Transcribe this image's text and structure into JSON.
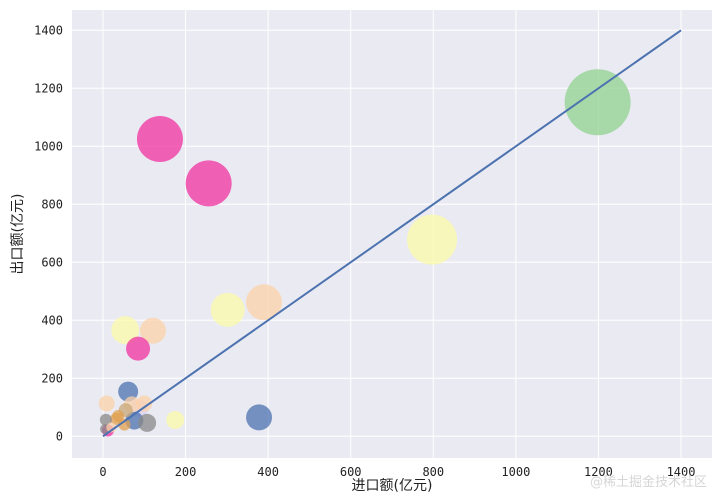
{
  "chart_data": {
    "type": "scatter",
    "title": "",
    "xlabel": "进口额(亿元)",
    "ylabel": "出口额(亿元)",
    "xlim": [
      -75,
      1475
    ],
    "ylim": [
      -75,
      1470
    ],
    "xticks": [
      0,
      200,
      400,
      600,
      800,
      1000,
      1200,
      1400
    ],
    "yticks": [
      0,
      200,
      400,
      600,
      800,
      1000,
      1200,
      1400
    ],
    "grid": true,
    "background": "#eaeaf2",
    "grid_color": "#ffffff",
    "reference_line": {
      "x": [
        0,
        1400
      ],
      "y": [
        0,
        1400
      ],
      "color": "#4c72b0"
    },
    "points": [
      {
        "x": 1198,
        "y": 1152,
        "r": 33,
        "color": "#8fd28f"
      },
      {
        "x": 138,
        "y": 1025,
        "r": 23,
        "color": "#f032a0"
      },
      {
        "x": 256,
        "y": 872,
        "r": 23,
        "color": "#f032a0"
      },
      {
        "x": 797,
        "y": 678,
        "r": 25,
        "color": "#fbfba8"
      },
      {
        "x": 390,
        "y": 462,
        "r": 18,
        "color": "#fcd2a8"
      },
      {
        "x": 302,
        "y": 436,
        "r": 17,
        "color": "#fbfba8"
      },
      {
        "x": 54,
        "y": 366,
        "r": 14,
        "color": "#fbfba8"
      },
      {
        "x": 121,
        "y": 364,
        "r": 13,
        "color": "#fcd2a8"
      },
      {
        "x": 85,
        "y": 302,
        "r": 12,
        "color": "#f032a0"
      },
      {
        "x": 61,
        "y": 154,
        "r": 10,
        "color": "#4c72b0"
      },
      {
        "x": 9,
        "y": 113,
        "r": 8,
        "color": "#fcd2a8"
      },
      {
        "x": 100,
        "y": 113,
        "r": 8,
        "color": "#fcd2a8"
      },
      {
        "x": 70,
        "y": 110,
        "r": 8,
        "color": "#fcd2a8"
      },
      {
        "x": 88,
        "y": 96,
        "r": 9,
        "color": "#dcd2f0"
      },
      {
        "x": 55,
        "y": 90,
        "r": 7,
        "color": "#c8a878"
      },
      {
        "x": 37,
        "y": 70,
        "r": 6,
        "color": "#e0a050"
      },
      {
        "x": 32,
        "y": 60,
        "r": 6,
        "color": "#e0a050"
      },
      {
        "x": 7,
        "y": 57,
        "r": 6,
        "color": "#888888"
      },
      {
        "x": 76,
        "y": 54,
        "r": 9,
        "color": "#4c72b0"
      },
      {
        "x": 107,
        "y": 46,
        "r": 9,
        "color": "#888888"
      },
      {
        "x": 52,
        "y": 40,
        "r": 6,
        "color": "#e0a050"
      },
      {
        "x": 175,
        "y": 56,
        "r": 9,
        "color": "#fbfba8"
      },
      {
        "x": 378,
        "y": 65,
        "r": 13,
        "color": "#4c72b0"
      },
      {
        "x": 12,
        "y": 20,
        "r": 6,
        "color": "#f032a0"
      },
      {
        "x": 5,
        "y": 25,
        "r": 5,
        "color": "#888888"
      },
      {
        "x": 20,
        "y": 30,
        "r": 5,
        "color": "#fcd2a8"
      }
    ]
  },
  "watermark": "@稀土掘金技术社区"
}
